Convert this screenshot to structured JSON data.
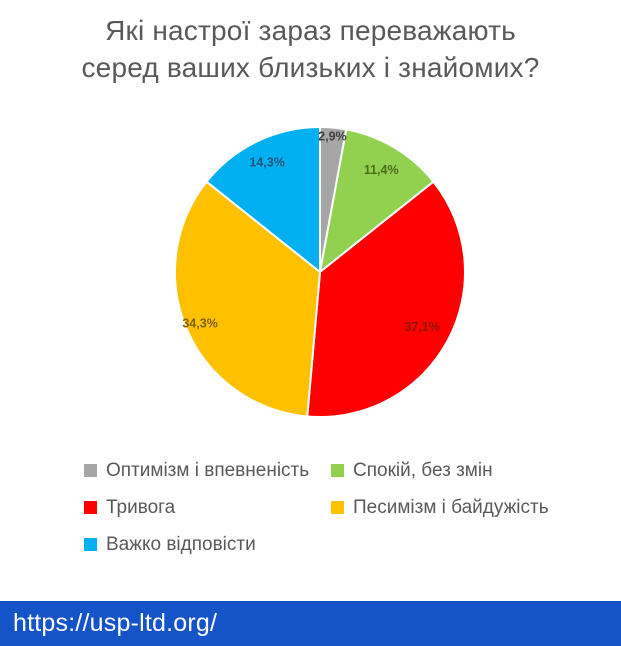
{
  "title": {
    "lines": [
      "Які настрої зараз переважають",
      "серед ваших близьких і знайомих?"
    ]
  },
  "chart_data": {
    "type": "pie",
    "title": "Які настрої зараз переважають серед ваших близьких і знайомих?",
    "unit": "%",
    "start_angle_deg": 0,
    "direction": "clockwise",
    "legend_position": "bottom",
    "slices": [
      {
        "label": "Оптимізм і впевненість",
        "value": 2.9,
        "display": "2,9%",
        "color": "#a6a6a6",
        "label_color": "#3f3f3f"
      },
      {
        "label": "Спокій, без змін",
        "value": 11.4,
        "display": "11,4%",
        "color": "#92d050",
        "label_color": "#4e6b1f"
      },
      {
        "label": "Тривога",
        "value": 37.1,
        "display": "37,1%",
        "color": "#fe0000",
        "label_color": "#8e1306"
      },
      {
        "label": "Песимізм і байдужість",
        "value": 34.3,
        "display": "34,3%",
        "color": "#ffc000",
        "label_color": "#7f6000"
      },
      {
        "label": "Важко відповісти",
        "value": 14.3,
        "display": "14,3%",
        "color": "#00b0f0",
        "label_color": "#1b587c"
      }
    ]
  },
  "theme": {
    "title_text_color": "#595959",
    "legend_text_color": "#595959",
    "slice_border_color": "#ffffff",
    "banner_background": "#1553c9",
    "banner_text_color": "#ffffff"
  },
  "footer": {
    "url": "https://usp-ltd.org/"
  }
}
